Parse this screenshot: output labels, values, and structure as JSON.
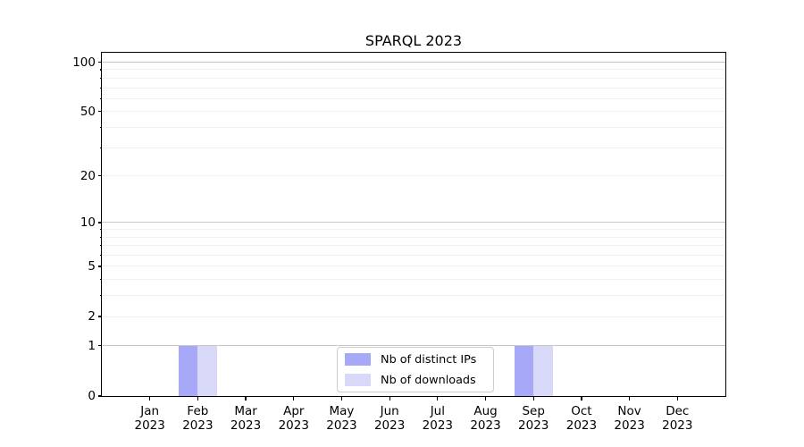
{
  "title": "SPARQL 2023",
  "colors": {
    "background": "#ffffff",
    "text": "#000000",
    "axis": "#000000",
    "grid_major": "#c6c6c6",
    "grid_minor": "#f0f0f0",
    "legend_border": "#cccccc",
    "bar_distinct_ips": "#a8a8f8",
    "bar_downloads": "#d8d8f8"
  },
  "chart_data": {
    "type": "bar",
    "title": "SPARQL 2023",
    "xlabel": "",
    "ylabel": "",
    "categories": [
      "Jan 2023",
      "Feb 2023",
      "Mar 2023",
      "Apr 2023",
      "May 2023",
      "Jun 2023",
      "Jul 2023",
      "Aug 2023",
      "Sep 2023",
      "Oct 2023",
      "Nov 2023",
      "Dec 2023"
    ],
    "series": [
      {
        "name": "Nb of distinct IPs",
        "color": "#a8a8f8",
        "values": [
          0,
          1,
          0,
          0,
          0,
          0,
          0,
          0,
          1,
          0,
          0,
          0
        ]
      },
      {
        "name": "Nb of downloads",
        "color": "#d8d8f8",
        "values": [
          0,
          1,
          0,
          0,
          0,
          0,
          0,
          0,
          1,
          0,
          0,
          0
        ]
      }
    ],
    "yscale": "log1p",
    "ylim": [
      0,
      114
    ],
    "y_tick_labels": [
      0,
      1,
      2,
      5,
      10,
      20,
      50,
      100
    ],
    "grid_major_values": [
      1,
      10,
      100
    ],
    "grid_minor_values": [
      2,
      3,
      4,
      5,
      6,
      7,
      8,
      9,
      20,
      30,
      40,
      50,
      60,
      70,
      80,
      90
    ],
    "grid": "horizontal, major+minor",
    "legend_position": "lower center (inside plot)"
  }
}
